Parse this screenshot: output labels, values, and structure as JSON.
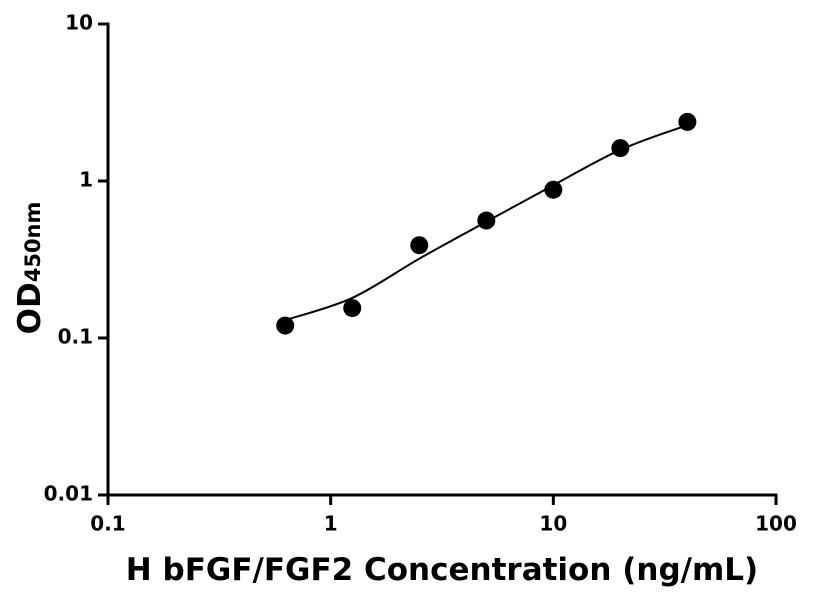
{
  "chart_data": {
    "type": "scatter",
    "x_label": "H bFGF/FGF2 Concentration (ng/mL)",
    "y_label": {
      "main": "OD",
      "sub": "450nm"
    },
    "x": [
      0.625,
      1.25,
      2.5,
      5,
      10,
      20,
      40
    ],
    "series": [
      {
        "color": "#000000",
        "values": [
          0.12,
          0.155,
          0.39,
          0.56,
          0.88,
          1.62,
          2.38
        ]
      },
      {
        "color": "#000000",
        "style": "line",
        "values": [
          0.13,
          0.18,
          0.32,
          0.55,
          0.94,
          1.58,
          2.27
        ]
      }
    ],
    "xlim": [
      0.1,
      100
    ],
    "ylim": [
      0.01,
      10
    ],
    "xticks": [
      0.1,
      1,
      10,
      100
    ],
    "yticks": [
      0.01,
      0.1,
      1,
      10
    ],
    "log_x": true,
    "log_y": true,
    "grid": false
  }
}
